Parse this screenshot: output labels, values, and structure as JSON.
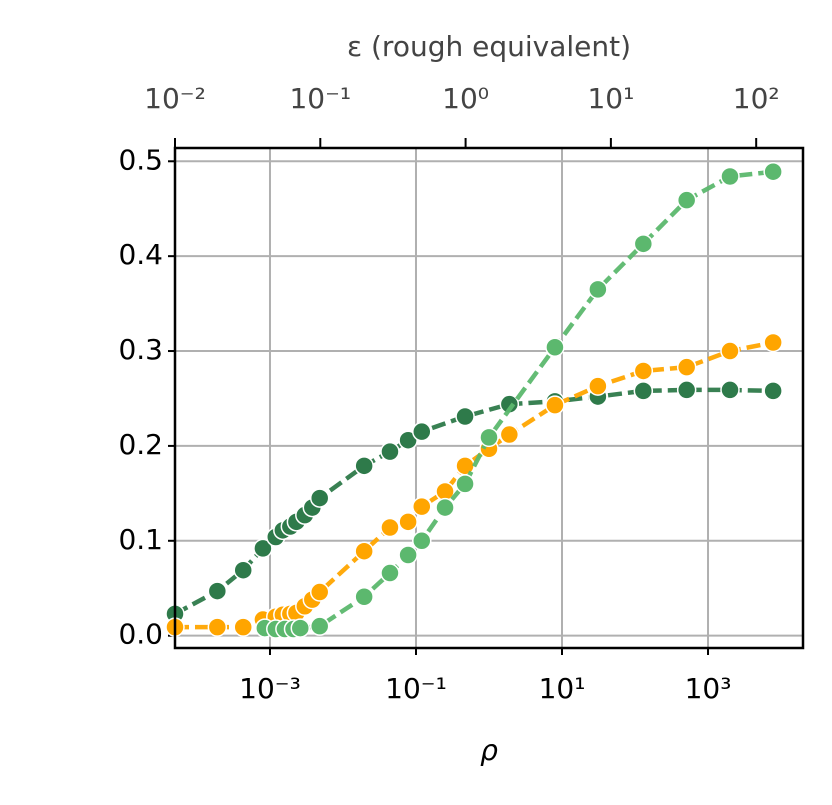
{
  "chart_data": {
    "type": "line",
    "xlabel": "ρ",
    "x2label": "ε (rough equivalent)",
    "xscale": "log",
    "xlim": [
      5e-05,
      20000
    ],
    "xticks": [
      {
        "value": 0.001,
        "label": "10⁻³"
      },
      {
        "value": 0.1,
        "label": "10⁻¹"
      },
      {
        "value": 10,
        "label": "10¹"
      },
      {
        "value": 1000,
        "label": "10³"
      }
    ],
    "x2lim": [
      0.01,
      210
    ],
    "x2ticks": [
      {
        "value": 0.01,
        "label": "10⁻²"
      },
      {
        "value": 0.1,
        "label": "10⁻¹"
      },
      {
        "value": 1,
        "label": "10⁰"
      },
      {
        "value": 10,
        "label": "10¹"
      },
      {
        "value": 100,
        "label": "10²"
      }
    ],
    "ylim": [
      -0.013,
      0.514
    ],
    "yticks": [
      {
        "value": 0,
        "label": "0.0"
      },
      0.1,
      0.2,
      0.3,
      0.4,
      0.5
    ],
    "grid": true,
    "series": [
      {
        "color": "#2e7a4a",
        "x": [
          5e-05,
          0.00019,
          0.00043,
          0.0008,
          0.0012,
          0.0015,
          0.0019,
          0.0023,
          0.003,
          0.0038,
          0.0048,
          0.0195,
          0.044,
          0.078,
          0.12,
          0.47,
          1.9,
          8,
          31,
          130,
          510,
          2000,
          7800
        ],
        "values": [
          0.023,
          0.047,
          0.069,
          0.092,
          0.104,
          0.111,
          0.115,
          0.12,
          0.127,
          0.135,
          0.145,
          0.179,
          0.194,
          0.206,
          0.215,
          0.231,
          0.244,
          0.247,
          0.252,
          0.258,
          0.259,
          0.259,
          0.258
        ]
      },
      {
        "color": "#ffa500",
        "x": [
          5e-05,
          0.00019,
          0.00043,
          0.0008,
          0.0012,
          0.0015,
          0.0019,
          0.0023,
          0.003,
          0.0038,
          0.0048,
          0.0195,
          0.044,
          0.078,
          0.12,
          0.25,
          0.47,
          1.0,
          1.9,
          8,
          31,
          130,
          510,
          2000,
          7800
        ],
        "values": [
          0.009,
          0.009,
          0.009,
          0.017,
          0.02,
          0.022,
          0.023,
          0.024,
          0.031,
          0.038,
          0.046,
          0.089,
          0.114,
          0.12,
          0.136,
          0.152,
          0.179,
          0.197,
          0.212,
          0.243,
          0.263,
          0.279,
          0.283,
          0.3,
          0.309
        ]
      },
      {
        "color": "#5cb86e",
        "x": [
          0.00085,
          0.0012,
          0.0016,
          0.0021,
          0.0026,
          0.0048,
          0.0195,
          0.044,
          0.078,
          0.12,
          0.25,
          0.47,
          1.0,
          8,
          31,
          130,
          510,
          2000,
          7800
        ],
        "values": [
          0.008,
          0.007,
          0.007,
          0.007,
          0.008,
          0.01,
          0.041,
          0.066,
          0.085,
          0.1,
          0.135,
          0.16,
          0.209,
          0.304,
          0.365,
          0.413,
          0.459,
          0.484,
          0.489
        ]
      }
    ]
  }
}
